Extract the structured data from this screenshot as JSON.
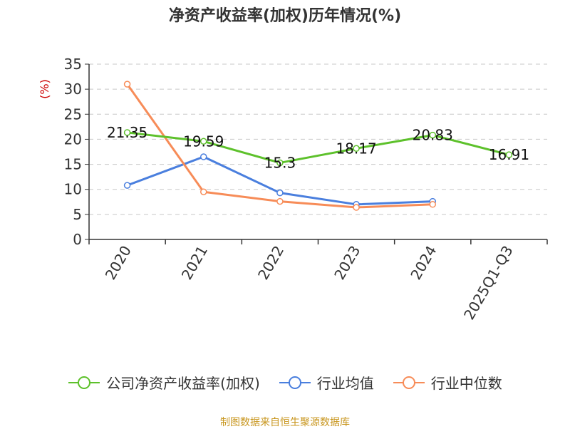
{
  "title": "净资产收益率(加权)历年情况(%)",
  "source": "制图数据来自恒生聚源数据库",
  "colors": {
    "company": "#5dc12b",
    "industry_avg": "#4a7fde",
    "industry_median": "#f78c58",
    "ylabel": "#cc0000",
    "grid": "#c8c8c8",
    "axis": "#333333"
  },
  "chart_data": {
    "type": "line",
    "title": "净资产收益率(加权)历年情况(%)",
    "ylabel": "(%)",
    "xlabel": "",
    "categories": [
      "2020",
      "2021",
      "2022",
      "2023",
      "2024",
      "2025Q1-Q3"
    ],
    "ylim": [
      0,
      35
    ],
    "yticks": [
      0,
      5,
      10,
      15,
      20,
      25,
      30,
      35
    ],
    "grid": true,
    "legend_position": "bottom",
    "series": [
      {
        "name": "公司净资产收益率(加权)",
        "color_key": "company",
        "values": [
          21.35,
          19.59,
          15.3,
          18.17,
          20.83,
          16.91
        ],
        "labels": [
          "21.35",
          "19.59",
          "15.3",
          "18.17",
          "20.83",
          "16.91"
        ]
      },
      {
        "name": "行业均值",
        "color_key": "industry_avg",
        "values": [
          10.8,
          16.5,
          9.3,
          7.0,
          7.6,
          null
        ]
      },
      {
        "name": "行业中位数",
        "color_key": "industry_median",
        "values": [
          31.0,
          9.5,
          7.6,
          6.4,
          7.0,
          null
        ]
      }
    ]
  }
}
